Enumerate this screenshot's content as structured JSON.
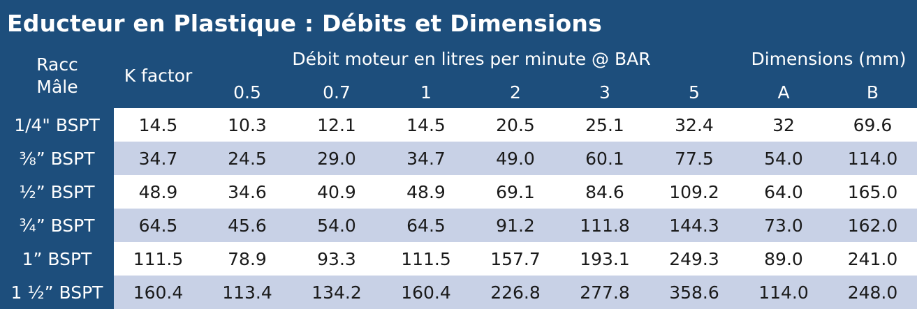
{
  "title": "Educteur en Plastique : Débits et Dimensions",
  "headers": {
    "racc_line1": "Racc",
    "racc_line2": "Mâle",
    "kfactor": "K factor",
    "debit_group": "Débit moteur en litres per minute @ BAR",
    "dims_group": "Dimensions (mm)",
    "pressures": [
      "0.5",
      "0.7",
      "1",
      "2",
      "3",
      "5"
    ],
    "dims": [
      "A",
      "B"
    ]
  },
  "rows": [
    {
      "size": "1/4\" BSPT",
      "values": [
        "14.5",
        "10.3",
        "12.1",
        "14.5",
        "20.5",
        "25.1",
        "32.4",
        "32",
        "69.6"
      ]
    },
    {
      "size": "⅜” BSPT",
      "values": [
        "34.7",
        "24.5",
        "29.0",
        "34.7",
        "49.0",
        "60.1",
        "77.5",
        "54.0",
        "114.0"
      ]
    },
    {
      "size": "½” BSPT",
      "values": [
        "48.9",
        "34.6",
        "40.9",
        "48.9",
        "69.1",
        "84.6",
        "109.2",
        "64.0",
        "165.0"
      ]
    },
    {
      "size": "¾” BSPT",
      "values": [
        "64.5",
        "45.6",
        "54.0",
        "64.5",
        "91.2",
        "111.8",
        "144.3",
        "73.0",
        "162.0"
      ]
    },
    {
      "size": "1” BSPT",
      "values": [
        "111.5",
        "78.9",
        "93.3",
        "111.5",
        "157.7",
        "193.1",
        "249.3",
        "89.0",
        "241.0"
      ]
    },
    {
      "size": "1 ½” BSPT",
      "values": [
        "160.4",
        "113.4",
        "134.2",
        "160.4",
        "226.8",
        "277.8",
        "358.6",
        "114.0",
        "248.0"
      ]
    }
  ],
  "colors": {
    "header_bg": "#1d4e7c",
    "row_light": "#ffffff",
    "row_shaded": "#c8d1e6",
    "text_dark": "#1a1a1a"
  }
}
